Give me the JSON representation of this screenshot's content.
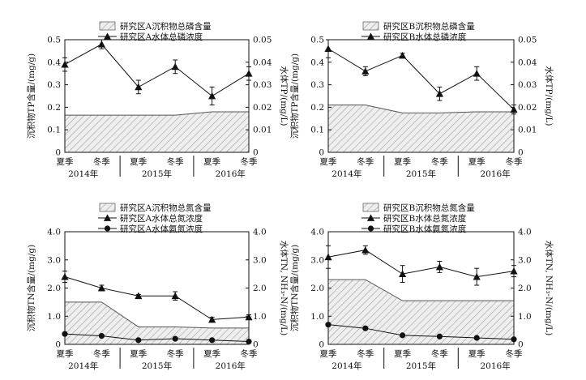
{
  "colors": {
    "line": "#111111",
    "hatch": "#9a9a9a",
    "area_fill": "#eeeeee"
  },
  "chart_data": [
    {
      "id": "A_TP",
      "type": "line+area",
      "categories": [
        "夏季",
        "冬季",
        "夏季",
        "冬季",
        "夏季",
        "冬季"
      ],
      "years": [
        "2014年",
        "2015年",
        "2016年"
      ],
      "ylabel_left": "沉积物TP含量/(mg/g)",
      "ylim_left": [
        0,
        0.5
      ],
      "yticks_left": [
        "0",
        "0.1",
        "0.2",
        "0.3",
        "0.4",
        "0.5"
      ],
      "ylabel_right": "水体TP/(mg/L)",
      "ylim_right": [
        0,
        0.05
      ],
      "yticks_right": [
        "0",
        "0.01",
        "0.02",
        "0.03",
        "0.04",
        "0.05"
      ],
      "area": {
        "name": "研究区A沉积物总磷含量",
        "values": [
          0.165,
          0.165,
          0.165,
          0.165,
          0.18,
          0.18
        ]
      },
      "series": [
        {
          "name": "研究区A水体总磷浓度",
          "marker": "triangle",
          "values": [
            0.039,
            0.048,
            0.029,
            0.038,
            0.025,
            0.035
          ],
          "errors": [
            0.003,
            0.002,
            0.003,
            0.003,
            0.004,
            0.003
          ]
        }
      ]
    },
    {
      "id": "B_TP",
      "type": "line+area",
      "categories": [
        "夏季",
        "冬季",
        "夏季",
        "冬季",
        "夏季",
        "冬季"
      ],
      "years": [
        "2014年",
        "2015年",
        "2016年"
      ],
      "ylabel_left": "沉积物TP含量/(mg/g)",
      "ylim_left": [
        0,
        0.5
      ],
      "yticks_left": [
        "0",
        "0.1",
        "0.2",
        "0.3",
        "0.4",
        "0.5"
      ],
      "ylabel_right": "水体TP/(mg/L)",
      "ylim_right": [
        0,
        0.05
      ],
      "yticks_right": [
        "0",
        "0.01",
        "0.02",
        "0.03",
        "0.04",
        "0.05"
      ],
      "area": {
        "name": "研究区B沉积物总磷含量",
        "values": [
          0.21,
          0.21,
          0.175,
          0.175,
          0.18,
          0.18
        ]
      },
      "series": [
        {
          "name": "研究区B水体总磷浓度",
          "marker": "triangle",
          "values": [
            0.046,
            0.036,
            0.043,
            0.026,
            0.035,
            0.019
          ],
          "errors": [
            0.004,
            0.002,
            0.001,
            0.003,
            0.003,
            0.002
          ]
        }
      ]
    },
    {
      "id": "A_TN",
      "type": "line+area",
      "categories": [
        "夏季",
        "冬季",
        "夏季",
        "冬季",
        "夏季",
        "冬季"
      ],
      "years": [
        "2014年",
        "2015年",
        "2016年"
      ],
      "ylabel_left": "沉积物TN含量/(mg/g)",
      "ylim_left": [
        0,
        4
      ],
      "yticks_left": [
        "0",
        "1.0",
        "2.0",
        "3.0",
        "4.0"
      ],
      "ylabel_right": "水体TN, NH₃-N/(mg/L)",
      "ylim_right": [
        0,
        4
      ],
      "yticks_right": [
        "0",
        "1.0",
        "2.0",
        "3.0",
        "4.0"
      ],
      "area": {
        "name": "研究区A沉积物总氮含量",
        "values": [
          1.5,
          1.5,
          0.62,
          0.62,
          0.58,
          0.58
        ]
      },
      "series": [
        {
          "name": "研究区A水体总氮浓度",
          "marker": "triangle",
          "values": [
            2.4,
            2.0,
            1.72,
            1.72,
            0.88,
            0.97
          ],
          "errors": [
            0.2,
            0.1,
            0.05,
            0.15,
            0.08,
            0.08
          ]
        },
        {
          "name": "研究区A水体氨氮浓度",
          "marker": "circle",
          "values": [
            0.37,
            0.3,
            0.15,
            0.2,
            0.15,
            0.1
          ],
          "errors": [
            0,
            0,
            0,
            0,
            0,
            0
          ]
        }
      ]
    },
    {
      "id": "B_TN",
      "type": "line+area",
      "categories": [
        "夏季",
        "冬季",
        "夏季",
        "冬季",
        "夏季",
        "冬季"
      ],
      "years": [
        "2014年",
        "2015年",
        "2016年"
      ],
      "ylabel_left": "沉积物TN含量/(mg/g)",
      "ylim_left": [
        0,
        4
      ],
      "yticks_left": [
        "0",
        "1.0",
        "2.0",
        "3.0",
        "4.0"
      ],
      "ylabel_right": "水体TN, NH₃-N/(mg/L)",
      "ylim_right": [
        0,
        4
      ],
      "yticks_right": [
        "0",
        "1.0",
        "2.0",
        "3.0",
        "4.0"
      ],
      "area": {
        "name": "研究区B沉积物总氮含量",
        "values": [
          2.3,
          2.3,
          1.55,
          1.55,
          1.55,
          1.55
        ]
      },
      "series": [
        {
          "name": "研究区B水体总氮浓度",
          "marker": "triangle",
          "values": [
            3.1,
            3.35,
            2.5,
            2.75,
            2.4,
            2.6
          ],
          "errors": [
            0.4,
            0.15,
            0.3,
            0.2,
            0.3,
            0.2
          ]
        },
        {
          "name": "研究区B水体氨氮浓度",
          "marker": "circle",
          "values": [
            0.7,
            0.57,
            0.32,
            0.28,
            0.23,
            0.18
          ],
          "errors": [
            0,
            0,
            0,
            0,
            0,
            0
          ]
        }
      ]
    }
  ]
}
